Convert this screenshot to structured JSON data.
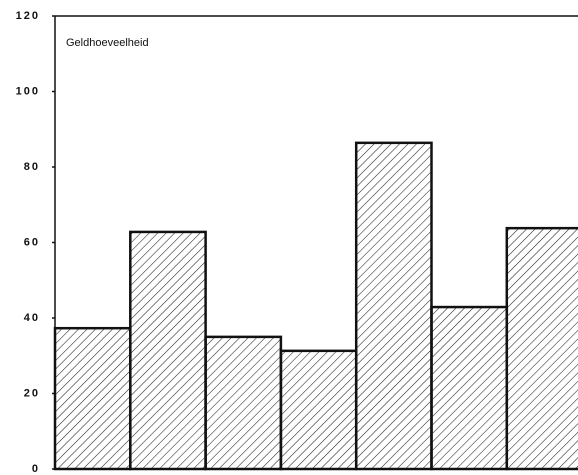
{
  "chart_data": {
    "type": "bar",
    "ylabel": "Geldhoeveelheid",
    "categories": [
      null,
      null,
      null,
      null,
      null,
      null,
      null
    ],
    "values": [
      37.3,
      62.8,
      35,
      31.3,
      86.4,
      42.9,
      63.8
    ],
    "color": "#111111",
    "ylim": [
      0,
      120
    ],
    "yticks": [
      0,
      20,
      40,
      60,
      80,
      100,
      120
    ],
    "grid": false
  }
}
